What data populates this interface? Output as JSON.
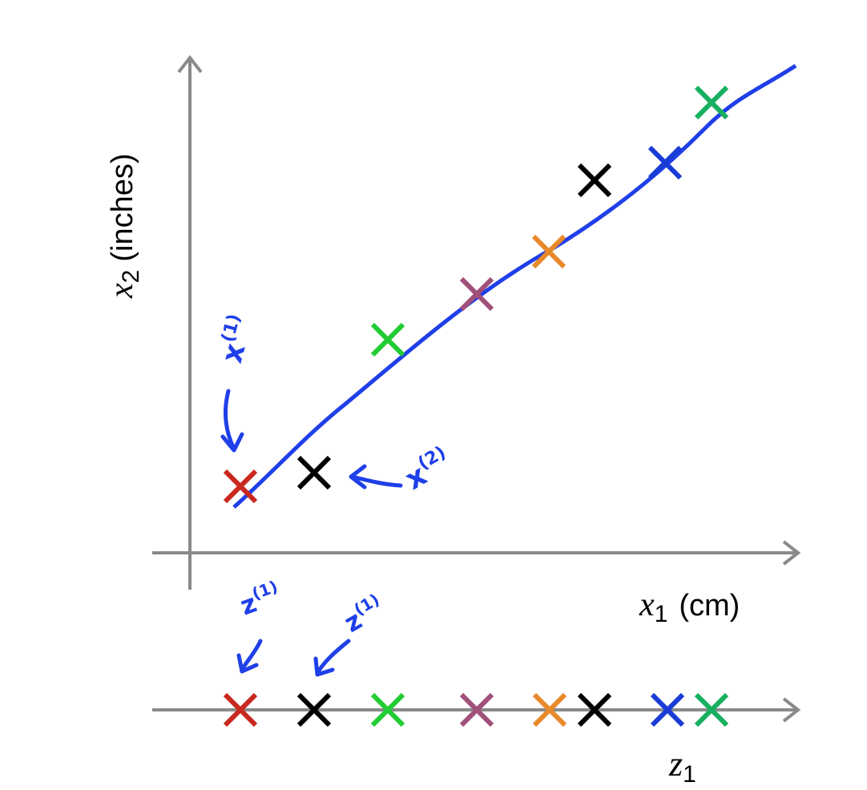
{
  "axes": {
    "x_label": {
      "symbol": "x",
      "subscript": "1",
      "unit": "(cm)"
    },
    "y_label": {
      "symbol": "x",
      "subscript": "2",
      "unit": "(inches)"
    },
    "z_label": {
      "symbol": "z",
      "subscript": "1"
    }
  },
  "annotations": [
    {
      "symbol": "x",
      "superscript": "(1)"
    },
    {
      "symbol": "x",
      "superscript": "(2)"
    },
    {
      "symbol": "z",
      "superscript": "(1)"
    },
    {
      "symbol": "z",
      "superscript": "(1)"
    }
  ]
}
